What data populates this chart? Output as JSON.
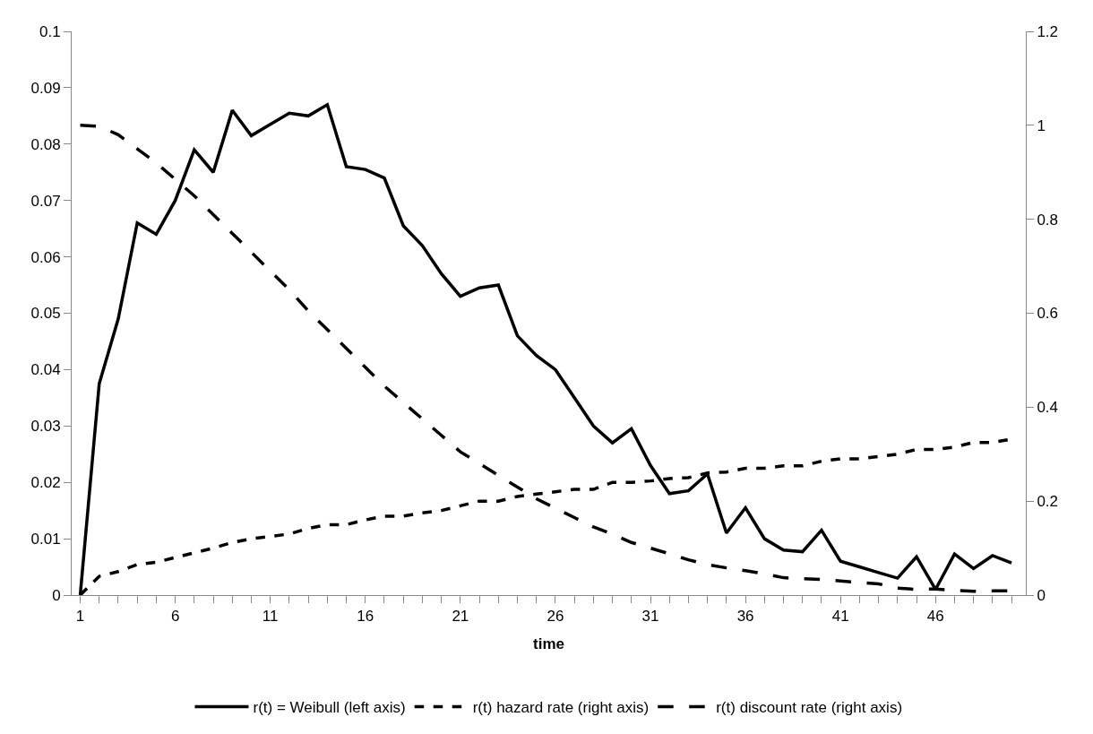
{
  "chart_data": {
    "type": "line",
    "xlabel": "time",
    "x": [
      1,
      2,
      3,
      4,
      5,
      6,
      7,
      8,
      9,
      10,
      11,
      12,
      13,
      14,
      15,
      16,
      17,
      18,
      19,
      20,
      21,
      22,
      23,
      24,
      25,
      26,
      27,
      28,
      29,
      30,
      31,
      32,
      33,
      34,
      35,
      36,
      37,
      38,
      39,
      40,
      41,
      42,
      43,
      44,
      45,
      46,
      47,
      48,
      49,
      50
    ],
    "xlim": [
      0.55,
      50.75
    ],
    "xticks": [
      1,
      6,
      11,
      16,
      21,
      26,
      31,
      36,
      41,
      46
    ],
    "series": [
      {
        "name": "r(t) = Weibull (left axis)",
        "color": "#000000",
        "line_style": "solid",
        "values": [
          0,
          0.0375,
          0.049,
          0.066,
          0.064,
          0.07,
          0.079,
          0.075,
          0.086,
          0.0815,
          0.0835,
          0.0855,
          0.085,
          0.087,
          0.076,
          0.0755,
          0.074,
          0.0655,
          0.062,
          0.057,
          0.053,
          0.0545,
          0.055,
          0.046,
          0.0425,
          0.04,
          0.035,
          0.03,
          0.027,
          0.0295,
          0.023,
          0.018,
          0.0185,
          0.0215,
          0.011,
          0.0155,
          0.01,
          0.008,
          0.0077,
          0.0115,
          0.006,
          0.005,
          0.004,
          0.003,
          0.0068,
          0.001,
          0.0073,
          0.0047,
          0.007,
          0.0057
        ]
      },
      {
        "name": "r(t) hazard rate (right axis)",
        "color": "#000000",
        "line_style": "dotted",
        "axis": "y2",
        "values": [
          0,
          0.04,
          0.05,
          0.065,
          0.07,
          0.08,
          0.09,
          0.1,
          0.112,
          0.12,
          0.125,
          0.13,
          0.142,
          0.15,
          0.15,
          0.16,
          0.168,
          0.168,
          0.175,
          0.18,
          0.19,
          0.2,
          0.2,
          0.21,
          0.215,
          0.22,
          0.225,
          0.225,
          0.24,
          0.24,
          0.243,
          0.248,
          0.25,
          0.26,
          0.262,
          0.27,
          0.27,
          0.275,
          0.275,
          0.285,
          0.29,
          0.29,
          0.295,
          0.3,
          0.31,
          0.31,
          0.315,
          0.325,
          0.325,
          0.332
        ]
      },
      {
        "name": "r(t) discount rate (right axis)",
        "color": "#000000",
        "line_style": "dashed",
        "axis": "y2",
        "values": [
          1.0,
          0.998,
          0.98,
          0.95,
          0.92,
          0.885,
          0.85,
          0.81,
          0.77,
          0.73,
          0.69,
          0.65,
          0.605,
          0.565,
          0.525,
          0.485,
          0.445,
          0.41,
          0.375,
          0.34,
          0.305,
          0.28,
          0.255,
          0.23,
          0.205,
          0.185,
          0.165,
          0.145,
          0.13,
          0.112,
          0.1,
          0.088,
          0.075,
          0.065,
          0.058,
          0.052,
          0.045,
          0.037,
          0.035,
          0.033,
          0.03,
          0.027,
          0.024,
          0.015,
          0.012,
          0.013,
          0.01,
          0.008,
          0.009,
          0.009
        ]
      }
    ],
    "ylim": [
      0,
      0.1
    ],
    "yticks": [
      0,
      0.01,
      0.02,
      0.03,
      0.04,
      0.05,
      0.06,
      0.07,
      0.08,
      0.09,
      0.1
    ],
    "y2lim": [
      0,
      1.2
    ],
    "y2ticks": [
      0,
      0.2,
      0.4,
      0.6,
      0.8,
      1,
      1.2
    ],
    "legend": "bottom",
    "marker": "none"
  }
}
